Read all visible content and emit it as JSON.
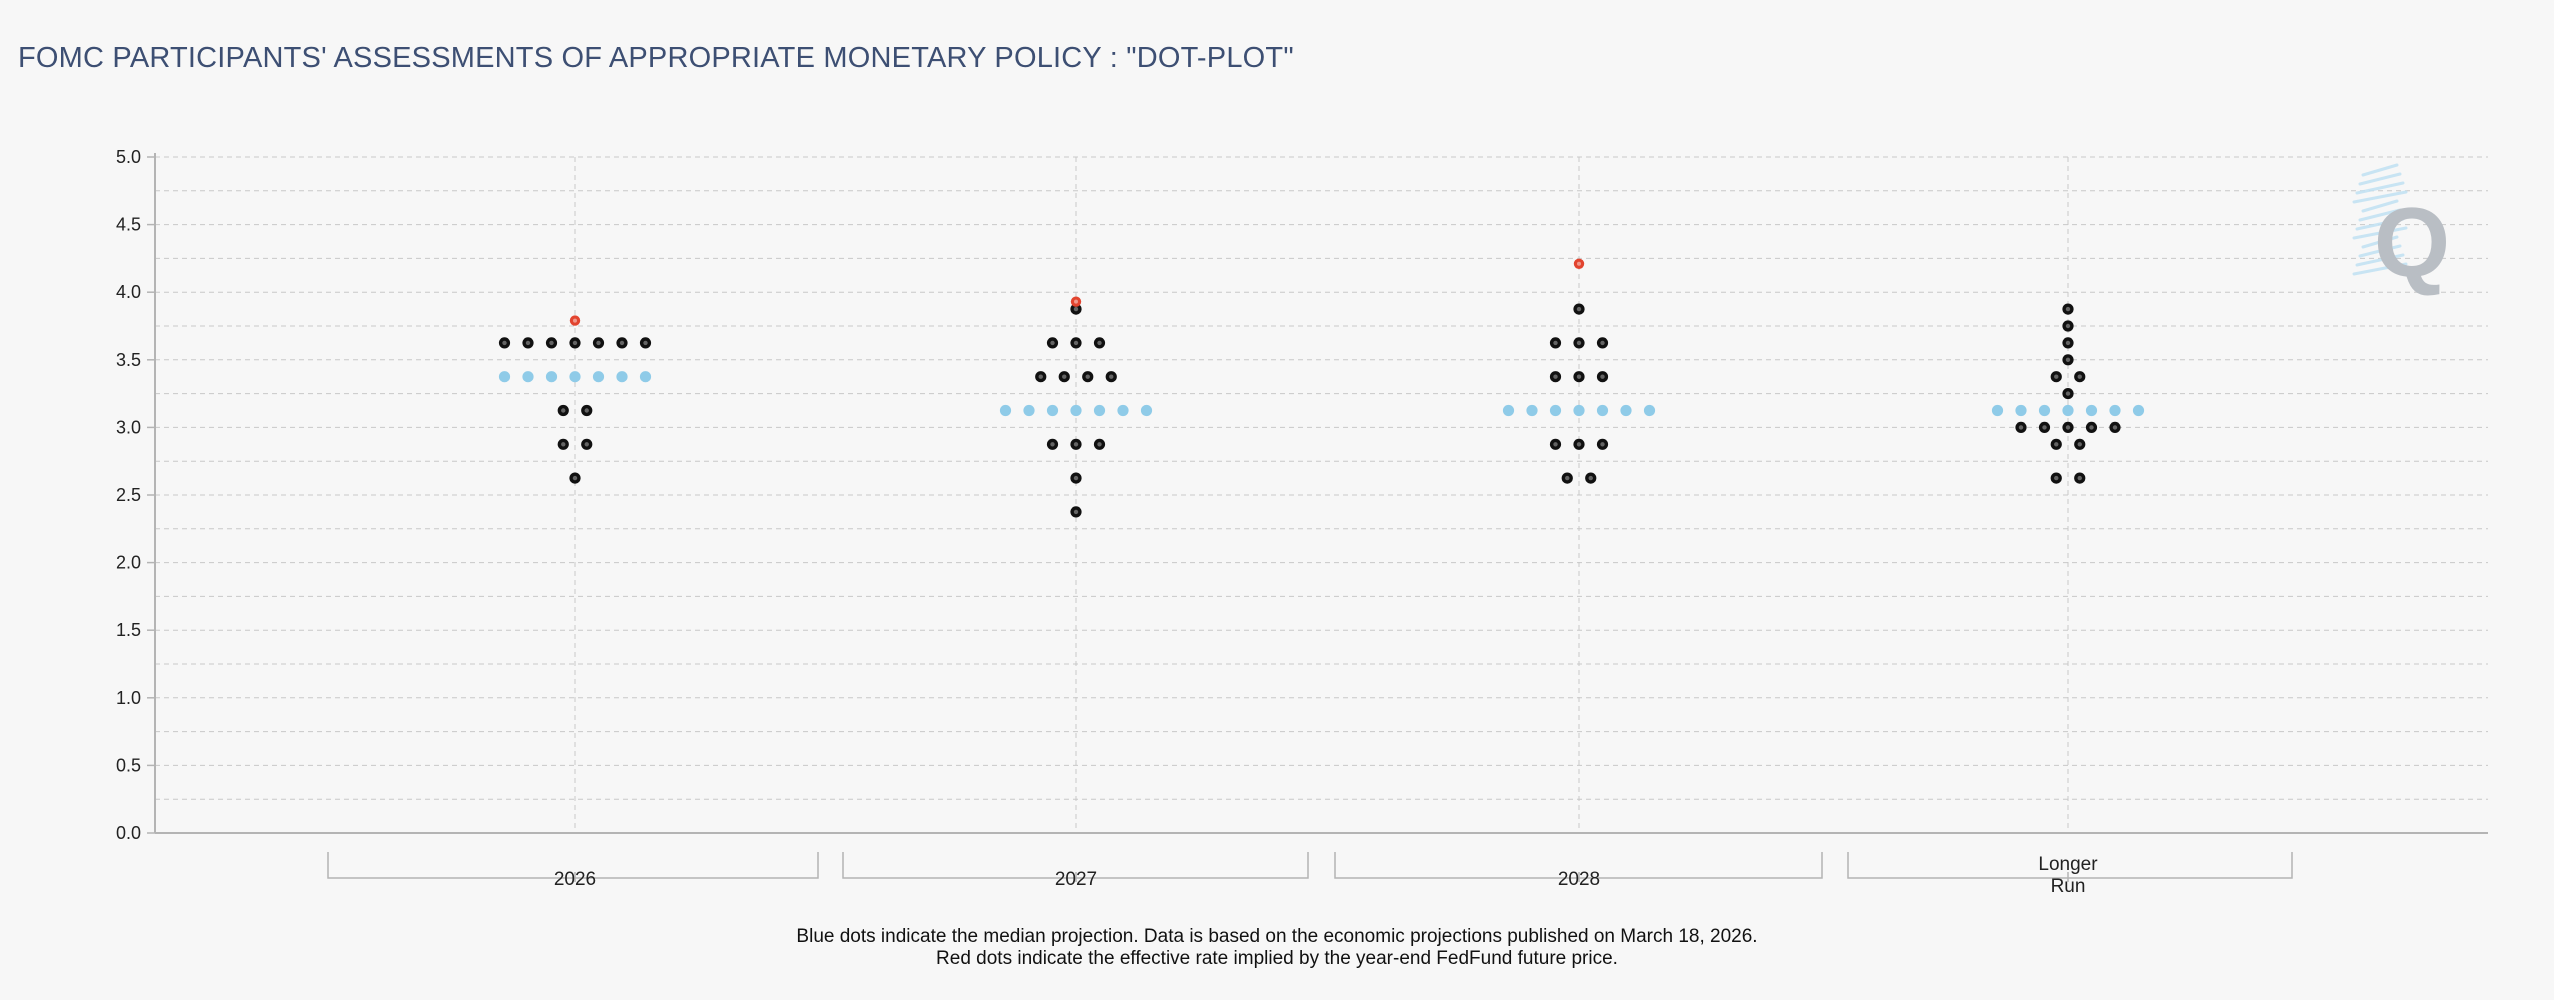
{
  "title": "FOMC PARTICIPANTS' ASSESSMENTS OF APPROPRIATE MONETARY POLICY : \"DOT-PLOT\"",
  "footnote": {
    "line1": "Blue dots indicate the median projection. Data is based on the economic projections published on March 18, 2026.",
    "line2": "Red dots indicate the effective rate implied by the year-end FedFund future price."
  },
  "logo": {
    "letter": "Q"
  },
  "colors": {
    "participant": "#111111",
    "median": "#8fcbe8",
    "implied": "#e2442f",
    "grid": "#c8c8c8",
    "axis": "#b4b4b4",
    "title": "#3d4f73",
    "logo": "#b9bec4",
    "logo_stripes": "#bfe0f2"
  },
  "chart_data": {
    "type": "scatter",
    "title": "FOMC PARTICIPANTS' ASSESSMENTS OF APPROPRIATE MONETARY POLICY : \"DOT-PLOT\"",
    "xlabel": "",
    "ylabel": "",
    "ylim": [
      0,
      5
    ],
    "yticks": [
      "0.0",
      "0.5",
      "1.0",
      "1.5",
      "2.0",
      "2.5",
      "3.0",
      "3.5",
      "4.0",
      "4.5",
      "5.0"
    ],
    "grid": true,
    "categories": [
      {
        "label": "2026",
        "participants": [
          {
            "rate": 3.625,
            "count": 7
          },
          {
            "rate": 3.125,
            "count": 2
          },
          {
            "rate": 2.875,
            "count": 2
          },
          {
            "rate": 2.625,
            "count": 1
          }
        ],
        "median": 3.375,
        "implied": 3.79
      },
      {
        "label": "2027",
        "participants": [
          {
            "rate": 3.875,
            "count": 1
          },
          {
            "rate": 3.625,
            "count": 3
          },
          {
            "rate": 3.375,
            "count": 4
          },
          {
            "rate": 2.875,
            "count": 3
          },
          {
            "rate": 2.625,
            "count": 1
          },
          {
            "rate": 2.375,
            "count": 1
          }
        ],
        "median": 3.125,
        "implied": 3.93
      },
      {
        "label": "2028",
        "participants": [
          {
            "rate": 3.875,
            "count": 1
          },
          {
            "rate": 3.625,
            "count": 3
          },
          {
            "rate": 3.375,
            "count": 3
          },
          {
            "rate": 2.875,
            "count": 3
          },
          {
            "rate": 2.625,
            "count": 2
          }
        ],
        "median": 3.125,
        "implied": 4.21
      },
      {
        "label_lines": [
          "Longer",
          "Run"
        ],
        "participants": [
          {
            "rate": 3.875,
            "count": 1
          },
          {
            "rate": 3.75,
            "count": 1
          },
          {
            "rate": 3.625,
            "count": 1
          },
          {
            "rate": 3.5,
            "count": 1
          },
          {
            "rate": 3.375,
            "count": 2
          },
          {
            "rate": 3.25,
            "count": 1
          },
          {
            "rate": 3.0,
            "count": 5
          },
          {
            "rate": 2.875,
            "count": 2
          },
          {
            "rate": 2.625,
            "count": 2
          }
        ],
        "median": 3.125,
        "implied": null
      }
    ]
  }
}
